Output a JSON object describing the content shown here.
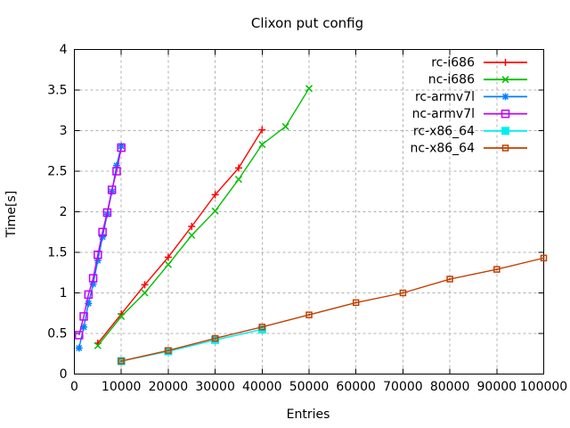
{
  "chart_data": {
    "type": "line",
    "title": "Clixon put config",
    "xlabel": "Entries",
    "ylabel": "Time[s]",
    "xlim": [
      0,
      100000
    ],
    "ylim": [
      0,
      4
    ],
    "grid": true,
    "legend_position": "top-right-inside",
    "colors": {
      "background": "#ffffff",
      "border": "#000000",
      "grid": "#b0b0b0",
      "text": "#000000"
    },
    "xticks": {
      "values": [
        0,
        10000,
        20000,
        30000,
        40000,
        50000,
        60000,
        70000,
        80000,
        90000,
        100000
      ],
      "labels": [
        "0",
        "10000",
        "20000",
        "30000",
        "40000",
        "50000",
        "60000",
        "70000",
        "80000",
        "90000",
        "100000"
      ]
    },
    "yticks": {
      "values": [
        0,
        0.5,
        1,
        1.5,
        2,
        2.5,
        3,
        3.5,
        4
      ],
      "labels": [
        "0",
        "0.5",
        "1",
        "1.5",
        "2",
        "2.5",
        "3",
        "3.5",
        "4"
      ]
    },
    "series": [
      {
        "name": "rc-i686",
        "color": "#ff0000",
        "marker": "plus",
        "x": [
          5000,
          10000,
          15000,
          20000,
          25000,
          30000,
          35000,
          40000
        ],
        "y": [
          0.38,
          0.74,
          1.1,
          1.44,
          1.82,
          2.21,
          2.54,
          3.01
        ]
      },
      {
        "name": "nc-i686",
        "color": "#00c000",
        "marker": "cross",
        "x": [
          5000,
          10000,
          15000,
          20000,
          25000,
          30000,
          35000,
          40000,
          45000,
          50000
        ],
        "y": [
          0.35,
          0.71,
          1.0,
          1.35,
          1.71,
          2.01,
          2.4,
          2.83,
          3.05,
          3.52
        ]
      },
      {
        "name": "rc-armv7l",
        "color": "#0080ff",
        "marker": "asterisk",
        "x": [
          1000,
          2000,
          3000,
          4000,
          5000,
          6000,
          7000,
          8000,
          9000,
          10000
        ],
        "y": [
          0.32,
          0.58,
          0.87,
          1.11,
          1.4,
          1.69,
          1.97,
          2.25,
          2.57,
          2.81
        ]
      },
      {
        "name": "nc-armv7l",
        "color": "#c000ff",
        "marker": "open-square",
        "x": [
          1000,
          2000,
          3000,
          4000,
          5000,
          6000,
          7000,
          8000,
          9000,
          10000
        ],
        "y": [
          0.48,
          0.71,
          0.98,
          1.18,
          1.47,
          1.75,
          1.99,
          2.27,
          2.5,
          2.79
        ]
      },
      {
        "name": "rc-x86_64",
        "color": "#00eeee",
        "marker": "filled-square",
        "x": [
          10000,
          20000,
          30000,
          40000
        ],
        "y": [
          0.16,
          0.28,
          0.42,
          0.55
        ]
      },
      {
        "name": "nc-x86_64",
        "color": "#c04000",
        "marker": "dot-square",
        "x": [
          10000,
          20000,
          30000,
          40000,
          50000,
          60000,
          70000,
          80000,
          90000,
          100000
        ],
        "y": [
          0.16,
          0.29,
          0.44,
          0.58,
          0.73,
          0.88,
          1.0,
          1.17,
          1.29,
          1.43
        ]
      }
    ]
  }
}
